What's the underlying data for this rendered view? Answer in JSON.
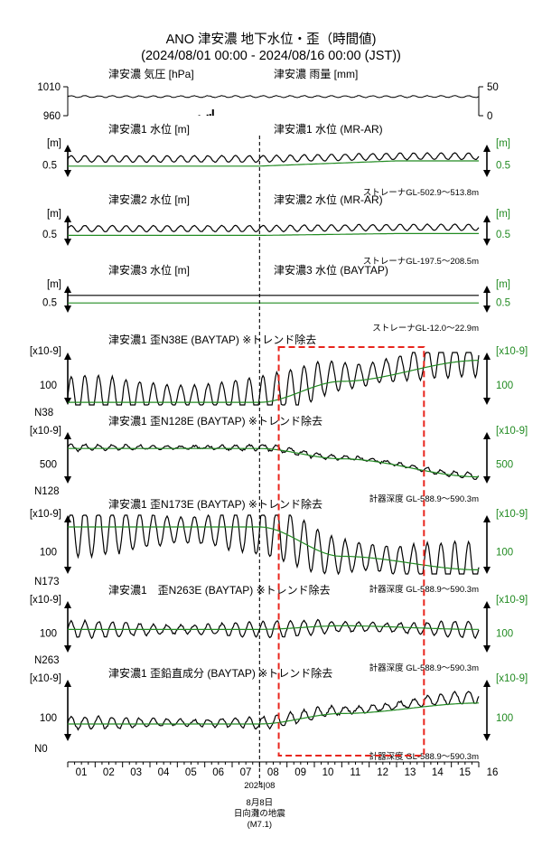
{
  "title": "ANO 津安濃 地下水位・歪（時間値)",
  "subtitle": "(2024/08/01 00:00 - 2024/08/16 00:00 (JST))",
  "colors": {
    "black": "#000000",
    "green": "#228b22",
    "red": "#e8251d"
  },
  "chart_data": {
    "type": "line",
    "x_axis": {
      "ticks": [
        "01",
        "02",
        "03",
        "04",
        "05",
        "06",
        "07",
        "08",
        "09",
        "10",
        "11",
        "12",
        "13",
        "14",
        "15",
        "16"
      ],
      "month_label": "2024|08",
      "range": [
        1,
        16
      ]
    },
    "event": {
      "day": 8.0,
      "label_lines": [
        "8月8日",
        "日向灘の地震",
        "(M7.1)"
      ]
    },
    "highlight": {
      "x_range": [
        8.7,
        14.0
      ],
      "style": "red-dashed-box"
    },
    "panels": [
      {
        "id": "pressure",
        "title_left": "津安濃 気圧 [hPa]",
        "title_right": "津安濃 雨量 [mm]",
        "left_ticks": [
          "1010",
          "960"
        ],
        "right_ticks": [
          "50",
          "0"
        ],
        "ylim_left": [
          960,
          1010
        ],
        "ylim_right": [
          0,
          50
        ],
        "series": [
          {
            "name": "気圧",
            "color": "black",
            "baseline": 993,
            "amp": 1.5,
            "period": 0.5
          },
          {
            "name": "雨量",
            "color": "black",
            "kind": "bars",
            "points": [
              [
                6.1,
                2
              ],
              [
                6.2,
                3
              ],
              [
                6.3,
                11
              ],
              [
                5.8,
                1
              ]
            ]
          }
        ]
      },
      {
        "id": "level1",
        "title_left": "津安濃1 水位 [m]",
        "title_right": "津安濃1 水位 (MR-AR)",
        "unit_left": "[m]",
        "unit_right": "[m]",
        "tick_left": "0.5",
        "tick_right": "0.5",
        "note": "ストレーナGL-502.9～513.8m",
        "series": [
          {
            "name": "水位",
            "color": "black",
            "base": [
              0.58,
              0.62
            ],
            "amp": 0.05,
            "period": 0.5
          },
          {
            "name": "水位 (MR-AR)",
            "color": "green",
            "base": [
              0.47,
              0.55
            ],
            "amp": 0.0,
            "period": 1
          }
        ]
      },
      {
        "id": "level2",
        "title_left": "津安濃2 水位 [m]",
        "title_right": "津安濃2 水位 (MR-AR)",
        "unit_left": "[m]",
        "unit_right": "[m]",
        "tick_left": "0.5",
        "tick_right": "0.5",
        "note": "ストレーナGL-197.5～208.5m",
        "series": [
          {
            "name": "水位",
            "color": "black",
            "base": [
              0.58,
              0.6
            ],
            "amp": 0.05,
            "period": 0.5
          },
          {
            "name": "水位 (MR-AR)",
            "color": "green",
            "base": [
              0.47,
              0.5
            ],
            "amp": 0.0,
            "period": 1
          }
        ]
      },
      {
        "id": "level3",
        "title_left": "津安濃3 水位 [m]",
        "title_right": "津安濃3 水位 (BAYTAP)",
        "unit_left": "[m]",
        "unit_right": "[m]",
        "tick_left": "0.5",
        "tick_right": "0.5",
        "note": "ストレーナGL-12.0～22.9m",
        "series": [
          {
            "name": "水位",
            "color": "black",
            "base": [
              0.62,
              0.62
            ],
            "amp": 0.0,
            "period": 1
          },
          {
            "name": "水位 (BAYTAP)",
            "color": "green",
            "base": [
              0.48,
              0.48
            ],
            "amp": 0.0,
            "period": 1
          }
        ]
      },
      {
        "id": "n38",
        "title_left": "津安濃1 歪N38E (BAYTAP) ※トレンド除去",
        "unit_left": "[x10-9]",
        "unit_right": "[x10-9]",
        "tick_left": "100",
        "tick_right": "100",
        "component": "N38",
        "note": "",
        "series": [
          {
            "name": "観測値",
            "color": "black",
            "amp": 0.42,
            "period": 0.5,
            "trend": [
              0.15,
              0.15,
              0.55,
              0.95
            ]
          },
          {
            "name": "BAYTAP",
            "color": "green",
            "amp": 0.0,
            "period": 1,
            "trend": [
              0.05,
              0.05,
              0.45,
              0.85
            ]
          }
        ]
      },
      {
        "id": "n128",
        "title_left": "津安濃1 歪N128E (BAYTAP) ※トレンド除去",
        "unit_left": "[x10-9]",
        "unit_right": "[x10-9]",
        "tick_left": "500",
        "tick_right": "500",
        "component": "N128",
        "note": "計器深度 GL-588.9～590.3m",
        "series": [
          {
            "name": "観測値",
            "color": "black",
            "amp": 0.06,
            "period": 0.5,
            "trend": [
              0.7,
              0.7,
              0.5,
              0.15
            ]
          },
          {
            "name": "BAYTAP",
            "color": "green",
            "amp": 0.0,
            "period": 1,
            "trend": [
              0.68,
              0.68,
              0.48,
              0.13
            ]
          }
        ]
      },
      {
        "id": "n173",
        "title_left": "津安濃1 歪N173E (BAYTAP) ※トレンド除去",
        "unit_left": "[x10-9]",
        "unit_right": "[x10-9]",
        "tick_left": "100",
        "tick_right": "100",
        "component": "N173",
        "note": "計器深度 GL-588.9～590.3m",
        "series": [
          {
            "name": "観測値",
            "color": "black",
            "amp": 0.45,
            "period": 0.5,
            "trend": [
              0.75,
              0.75,
              0.3,
              0.1
            ]
          },
          {
            "name": "BAYTAP",
            "color": "green",
            "amp": 0.0,
            "period": 1,
            "trend": [
              0.8,
              0.8,
              0.3,
              0.07
            ]
          }
        ]
      },
      {
        "id": "n263",
        "title_left": "津安濃1　歪N263E (BAYTAP) ※トレンド除去",
        "unit_left": "[x10-9]",
        "unit_right": "[x10-9]",
        "tick_left": "100",
        "tick_right": "100",
        "component": "N263",
        "note": "計器深度 GL-588.9～590.3m",
        "series": [
          {
            "name": "観測値",
            "color": "black",
            "amp": 0.16,
            "period": 0.5,
            "trend": [
              0.45,
              0.45,
              0.5,
              0.45
            ]
          },
          {
            "name": "BAYTAP",
            "color": "green",
            "amp": 0.0,
            "period": 1,
            "trend": [
              0.45,
              0.45,
              0.52,
              0.45
            ]
          }
        ]
      },
      {
        "id": "nv",
        "title_left": "津安濃1 歪鉛直成分 (BAYTAP) ※トレンド除去",
        "unit_left": "[x10-9]",
        "unit_right": "[x10-9]",
        "tick_left": "100",
        "tick_right": "100",
        "component": "N0",
        "note": "計器深度 GL-588.9～590.3m",
        "series": [
          {
            "name": "観測値",
            "color": "black",
            "amp": 0.1,
            "period": 0.5,
            "trend": [
              0.3,
              0.3,
              0.5,
              0.72
            ]
          },
          {
            "name": "BAYTAP",
            "color": "green",
            "amp": 0.0,
            "period": 1,
            "trend": [
              0.28,
              0.28,
              0.45,
              0.62
            ]
          }
        ]
      }
    ]
  }
}
